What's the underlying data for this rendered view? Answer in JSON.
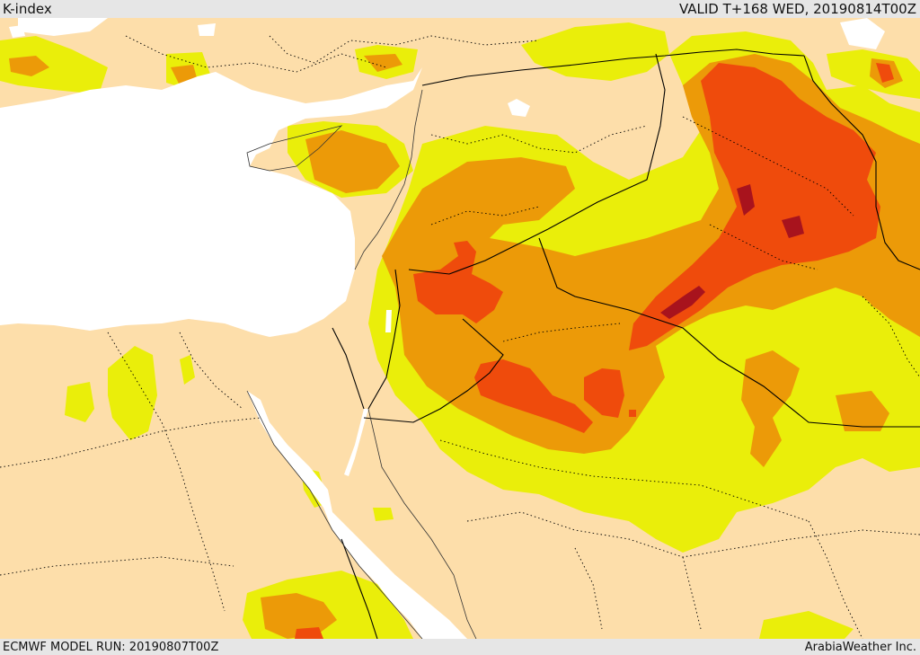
{
  "header": {
    "title": "K-index",
    "valid_time": "VALID T+168 WED, 20190814T00Z"
  },
  "footer": {
    "model_run": "ECMWF MODEL RUN: 20190807T00Z",
    "credit": "ArabiaWeather Inc."
  },
  "colors": {
    "land": "#fddeaa",
    "sea": "#ffffff",
    "band_yellow": "#eaee0a",
    "band_orange": "#ec9a08",
    "band_red_orange": "#ef4b0c",
    "band_dark_red": "#a8131d",
    "border_line": "#000000"
  }
}
